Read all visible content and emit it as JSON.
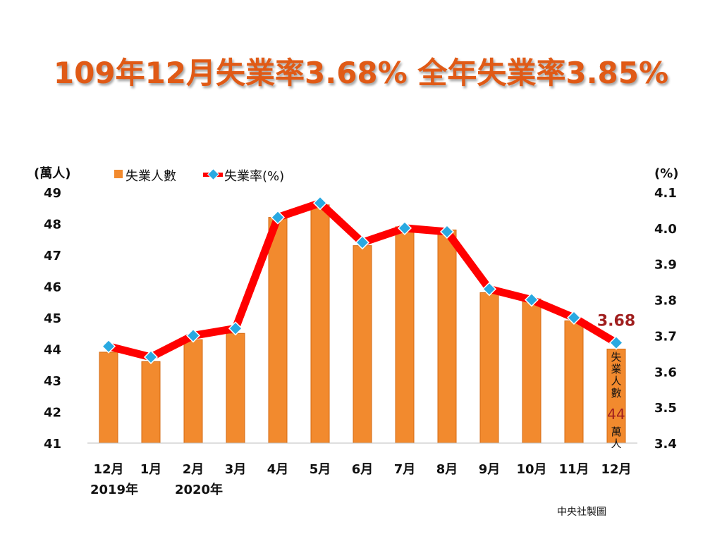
{
  "title": "109年12月失業率3.68% 全年失業率3.85%",
  "credit": "中央社製圖",
  "colors": {
    "bar": "#f28a2e",
    "bar_stroke": "#d46a12",
    "line": "#ff0000",
    "marker": "#29a9e1",
    "marker_stroke": "#ffffff",
    "title": "#e05a16",
    "annotation": "#a01f1f"
  },
  "chart_data": {
    "type": "bar",
    "categories": [
      "12月",
      "1月",
      "2月",
      "3月",
      "4月",
      "5月",
      "6月",
      "7月",
      "8月",
      "9月",
      "10月",
      "11月",
      "12月"
    ],
    "year_labels": [
      "2019年",
      "",
      "2020年",
      "",
      "",
      "",
      "",
      "",
      "",
      "",
      "",
      "",
      ""
    ],
    "series": [
      {
        "name": "失業人數",
        "type": "bar",
        "axis": "left",
        "values": [
          43.9,
          43.6,
          44.3,
          44.5,
          48.2,
          48.6,
          47.3,
          47.9,
          47.8,
          45.8,
          45.6,
          44.9,
          44.0
        ]
      },
      {
        "name": "失業率(%)",
        "type": "line",
        "axis": "right",
        "values": [
          3.67,
          3.64,
          3.7,
          3.72,
          4.03,
          4.07,
          3.96,
          4.0,
          3.99,
          3.83,
          3.8,
          3.75,
          3.68
        ]
      }
    ],
    "y_left": {
      "unit": "(萬人)",
      "range": [
        41,
        49
      ],
      "ticks": [
        "41",
        "42",
        "43",
        "44",
        "45",
        "46",
        "47",
        "48",
        "49"
      ]
    },
    "y_right": {
      "unit": "(%)",
      "range": [
        3.4,
        4.1
      ],
      "ticks": [
        "3.4",
        "3.5",
        "3.6",
        "3.7",
        "3.8",
        "3.9",
        "4.0",
        "4.1"
      ]
    },
    "legend": {
      "placement": "top-left",
      "bar_label": "失業人數",
      "line_label": "失業率(%)"
    },
    "annotations": {
      "last_rate": "3.68",
      "last_count_label_chars": [
        "失",
        "業",
        "人",
        "數"
      ],
      "last_count_value": "44",
      "last_count_unit_chars": [
        "萬",
        "人"
      ]
    },
    "grid": false
  }
}
